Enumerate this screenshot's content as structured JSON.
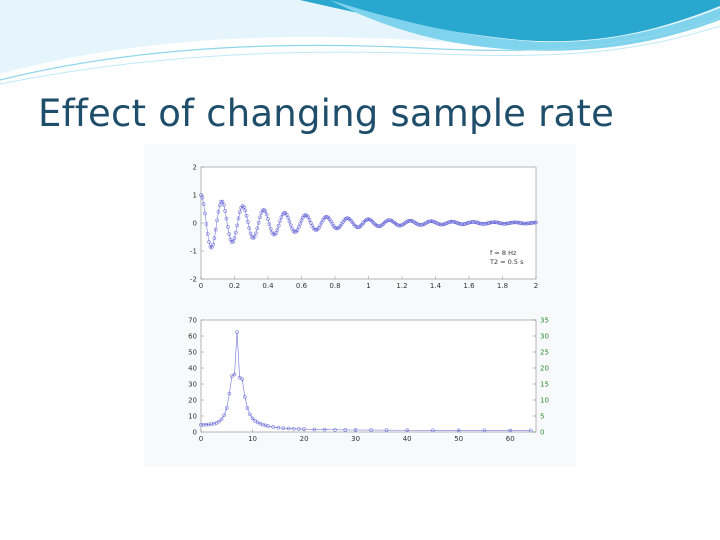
{
  "slide": {
    "title": "Effect of changing sample rate"
  },
  "theme": {
    "title_color": "#1f4e6b",
    "swoosh_colors": [
      "#2aa7cf",
      "#7fd3ec",
      "#bfe9f6"
    ],
    "signal_color": "#5a5ad6",
    "right_axis_color": "#2f8f2f"
  },
  "chart_data": [
    {
      "type": "line",
      "title": "",
      "xlabel": "",
      "ylabel": "",
      "xlim": [
        0,
        2
      ],
      "ylim": [
        -2,
        2
      ],
      "x_ticks": [
        "0",
        "0.2",
        "0.4",
        "0.6",
        "0.8",
        "1",
        "1.2",
        "1.4",
        "1.6",
        "1.8",
        "2"
      ],
      "y_ticks": [
        "-2",
        "-1",
        "0",
        "1",
        "2"
      ],
      "annotation": [
        "f = 8 Hz",
        "T2 = 0.5 s"
      ],
      "signal": {
        "frequency_hz": 8,
        "t2_s": 0.5,
        "amplitude": 1.0,
        "sample_interval_s": 0.008,
        "marker": "o"
      },
      "grid": false,
      "legend": "none"
    },
    {
      "type": "line",
      "title": "",
      "xlabel": "",
      "ylabel": "",
      "xlim": [
        0,
        65
      ],
      "ylim": [
        0,
        70
      ],
      "y2lim": [
        0,
        35
      ],
      "x_ticks": [
        "0",
        "10",
        "20",
        "30",
        "40",
        "50",
        "60"
      ],
      "y_ticks": [
        "0",
        "10",
        "20",
        "30",
        "40",
        "50",
        "60",
        "70"
      ],
      "y2_ticks": [
        "0",
        "5",
        "10",
        "15",
        "20",
        "25",
        "30",
        "35"
      ],
      "series": [
        {
          "x": [
            0,
            0.5,
            1,
            1.5,
            2,
            2.5,
            3,
            3.5,
            4,
            4.5,
            5,
            5.5,
            6,
            6.5,
            7,
            7.5,
            8,
            8.5,
            9,
            9.5,
            10,
            10.5,
            11,
            11.5,
            12,
            12.5,
            13,
            14,
            15,
            16,
            17,
            18,
            19,
            20,
            22,
            24,
            26,
            28,
            30,
            33,
            36,
            40,
            45,
            50,
            55,
            60,
            64
          ],
          "y": [
            4.5,
            4.5,
            4.6,
            4.7,
            4.9,
            5.2,
            5.7,
            6.5,
            8.0,
            10.5,
            15.0,
            24.0,
            35.0,
            36.0,
            62.5,
            34.0,
            33.0,
            22.0,
            15.0,
            11.0,
            8.5,
            7.0,
            6.0,
            5.2,
            4.6,
            4.1,
            3.7,
            3.1,
            2.7,
            2.4,
            2.2,
            2.0,
            1.9,
            1.8,
            1.6,
            1.5,
            1.4,
            1.3,
            1.25,
            1.2,
            1.15,
            1.1,
            1.05,
            1.0,
            1.0,
            0.95,
            0.95
          ],
          "marker": "o"
        }
      ],
      "grid": false,
      "legend": "none"
    }
  ]
}
